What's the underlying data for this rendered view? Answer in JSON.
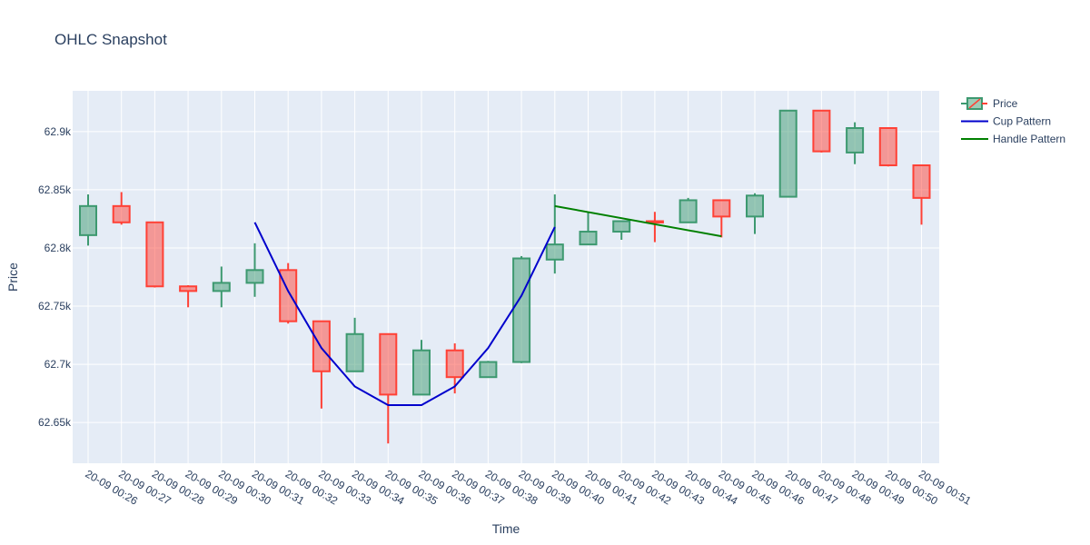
{
  "chart_data": {
    "type": "candlestick",
    "title": "OHLC Snapshot",
    "xlabel": "Time",
    "ylabel": "Price",
    "ylim": [
      62615,
      62935
    ],
    "y_ticks": [
      62650,
      62700,
      62750,
      62800,
      62850,
      62900
    ],
    "y_tick_labels": [
      "62.65k",
      "62.7k",
      "62.75k",
      "62.8k",
      "62.85k",
      "62.9k"
    ],
    "categories": [
      "20-09 00:26",
      "20-09 00:27",
      "20-09 00:28",
      "20-09 00:29",
      "20-09 00:30",
      "20-09 00:31",
      "20-09 00:32",
      "20-09 00:33",
      "20-09 00:34",
      "20-09 00:35",
      "20-09 00:36",
      "20-09 00:37",
      "20-09 00:38",
      "20-09 00:39",
      "20-09 00:40",
      "20-09 00:41",
      "20-09 00:42",
      "20-09 00:43",
      "20-09 00:44",
      "20-09 00:45",
      "20-09 00:46",
      "20-09 00:47",
      "20-09 00:48",
      "20-09 00:49",
      "20-09 00:50",
      "20-09 00:51"
    ],
    "ohlc": [
      {
        "open": 62811,
        "high": 62846,
        "low": 62802,
        "close": 62836
      },
      {
        "open": 62836,
        "high": 62848,
        "low": 62820,
        "close": 62822
      },
      {
        "open": 62822,
        "high": 62822,
        "low": 62766,
        "close": 62767
      },
      {
        "open": 62767,
        "high": 62768,
        "low": 62749,
        "close": 62763
      },
      {
        "open": 62763,
        "high": 62784,
        "low": 62749,
        "close": 62770
      },
      {
        "open": 62770,
        "high": 62804,
        "low": 62758,
        "close": 62781
      },
      {
        "open": 62781,
        "high": 62787,
        "low": 62735,
        "close": 62737
      },
      {
        "open": 62737,
        "high": 62737,
        "low": 62662,
        "close": 62694
      },
      {
        "open": 62694,
        "high": 62740,
        "low": 62694,
        "close": 62726
      },
      {
        "open": 62726,
        "high": 62726,
        "low": 62632,
        "close": 62674
      },
      {
        "open": 62674,
        "high": 62721,
        "low": 62674,
        "close": 62712
      },
      {
        "open": 62712,
        "high": 62718,
        "low": 62675,
        "close": 62689
      },
      {
        "open": 62689,
        "high": 62703,
        "low": 62689,
        "close": 62702
      },
      {
        "open": 62702,
        "high": 62793,
        "low": 62701,
        "close": 62791
      },
      {
        "open": 62790,
        "high": 62846,
        "low": 62778,
        "close": 62803
      },
      {
        "open": 62803,
        "high": 62831,
        "low": 62803,
        "close": 62814
      },
      {
        "open": 62814,
        "high": 62823,
        "low": 62807,
        "close": 62823
      },
      {
        "open": 62823,
        "high": 62831,
        "low": 62805,
        "close": 62822
      },
      {
        "open": 62822,
        "high": 62843,
        "low": 62822,
        "close": 62841
      },
      {
        "open": 62841,
        "high": 62841,
        "low": 62809,
        "close": 62827
      },
      {
        "open": 62827,
        "high": 62847,
        "low": 62812,
        "close": 62845
      },
      {
        "open": 62844,
        "high": 62918,
        "low": 62844,
        "close": 62918
      },
      {
        "open": 62918,
        "high": 62918,
        "low": 62882,
        "close": 62883
      },
      {
        "open": 62882,
        "high": 62908,
        "low": 62872,
        "close": 62903
      },
      {
        "open": 62903,
        "high": 62903,
        "low": 62870,
        "close": 62871
      },
      {
        "open": 62871,
        "high": 62871,
        "low": 62820,
        "close": 62843
      }
    ],
    "overlays": [
      {
        "name": "Cup Pattern",
        "color": "#0000cc",
        "x_index": [
          5,
          6,
          7,
          8,
          9,
          10,
          11,
          12,
          13,
          14
        ],
        "y": [
          62822,
          62763,
          62714,
          62681,
          62665,
          62665,
          62681,
          62714,
          62759,
          62818
        ]
      },
      {
        "name": "Handle Pattern",
        "color": "#008000",
        "x_index": [
          14,
          19
        ],
        "y": [
          62836,
          62810
        ]
      }
    ],
    "legend": [
      {
        "name": "Price",
        "kind": "candlestick"
      },
      {
        "name": "Cup Pattern",
        "kind": "line",
        "color": "#0000cc"
      },
      {
        "name": "Handle Pattern",
        "kind": "line",
        "color": "#008000"
      }
    ],
    "legend_position": "top-right",
    "grid": true,
    "colors": {
      "increasing": "#3d9970",
      "decreasing": "#ff4136",
      "plot_bg": "#e5ecf6",
      "grid": "#ffffff",
      "text": "#2a3f5f"
    }
  }
}
